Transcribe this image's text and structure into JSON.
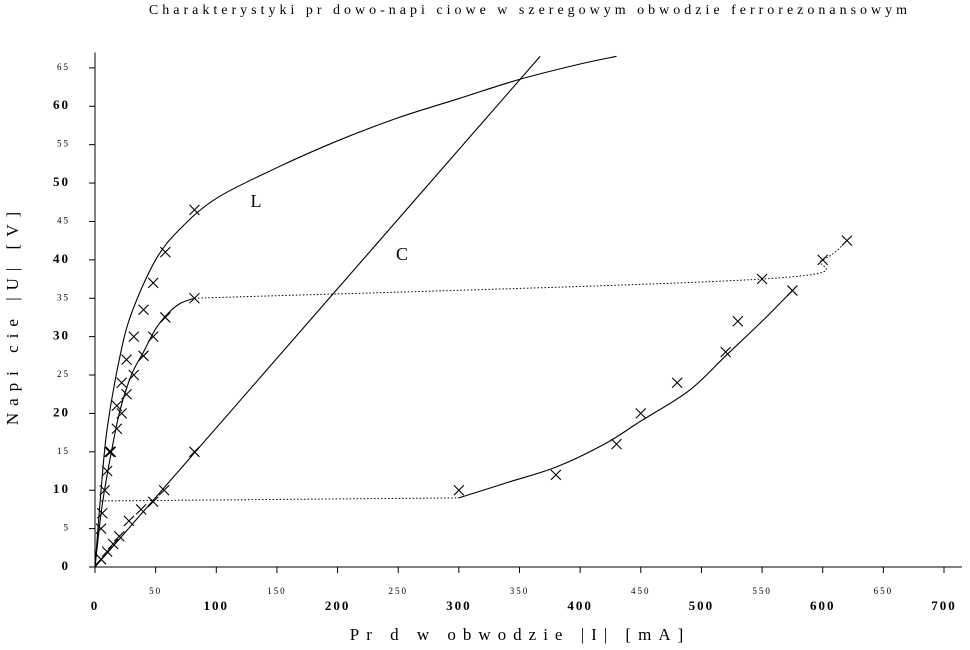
{
  "chart_data": {
    "type": "line",
    "title": "Charakterystyki pr dowo-napi ciowe w szeregowym obwodzie ferrorezonansowym",
    "x_label": "Pr d w obwodzie |I| [mA]",
    "y_label": "Napi cie |U| [V]",
    "xlim": [
      0,
      700
    ],
    "ylim": [
      0,
      67
    ],
    "xticks": [
      0,
      50,
      100,
      150,
      200,
      250,
      300,
      350,
      400,
      450,
      500,
      550,
      600,
      650,
      700
    ],
    "yticks": [
      0,
      5,
      10,
      15,
      20,
      25,
      30,
      35,
      40,
      45,
      50,
      55,
      60,
      65
    ],
    "color": "#000000",
    "annotations": [
      "L",
      "C"
    ],
    "series": [
      {
        "style": "solid",
        "x": [
          0,
          5,
          10,
          20,
          30,
          50,
          70,
          100,
          150,
          200,
          250,
          300,
          350,
          400,
          430
        ],
        "values": [
          0,
          10,
          18,
          27,
          33,
          40,
          44,
          48,
          52,
          55.5,
          58.5,
          61,
          63.5,
          65.5,
          66.5
        ]
      },
      {
        "style": "markers",
        "x": [
          5,
          8,
          12,
          18,
          22,
          26,
          32,
          40,
          48,
          58,
          82
        ],
        "values": [
          5,
          10,
          15,
          21,
          24,
          27,
          30,
          33.5,
          37,
          41,
          46.5
        ]
      },
      {
        "style": "solid",
        "x": [
          0,
          5,
          10,
          20,
          30,
          40,
          50,
          60,
          70,
          82
        ],
        "values": [
          0,
          7,
          12,
          20,
          25,
          28,
          31,
          33,
          34.3,
          35
        ]
      },
      {
        "style": "markers",
        "x": [
          6,
          10,
          13,
          18,
          22,
          26,
          32,
          40,
          48,
          58,
          82
        ],
        "values": [
          7,
          12.5,
          15,
          18,
          20,
          22.5,
          25,
          27.5,
          30,
          32.5,
          35
        ]
      },
      {
        "style": "dotted",
        "x": [
          82,
          550,
          600,
          620
        ],
        "values": [
          35,
          37.5,
          40,
          42.5
        ]
      },
      {
        "style": "markers",
        "x": [
          550,
          600,
          620
        ],
        "values": [
          37.5,
          40,
          42.5
        ]
      },
      {
        "style": "solid",
        "x": [
          0,
          367
        ],
        "values": [
          0,
          66.5
        ]
      },
      {
        "style": "markers",
        "x": [
          5,
          10,
          15,
          20,
          28,
          38,
          48,
          57,
          82
        ],
        "values": [
          1,
          2,
          3,
          4,
          6,
          7.5,
          8.5,
          10,
          15
        ]
      },
      {
        "style": "dotted",
        "x": [
          5,
          300
        ],
        "values": [
          8.6,
          9
        ]
      },
      {
        "style": "solid",
        "x": [
          300,
          340,
          380,
          420,
          450,
          490,
          520,
          550,
          575
        ],
        "values": [
          9,
          11,
          13,
          16,
          19,
          23,
          27.5,
          32,
          36
        ]
      },
      {
        "style": "markers",
        "x": [
          300,
          380,
          430,
          450,
          480,
          520,
          530,
          575
        ],
        "values": [
          10,
          12,
          16,
          20,
          24,
          28,
          32,
          36
        ]
      }
    ]
  }
}
